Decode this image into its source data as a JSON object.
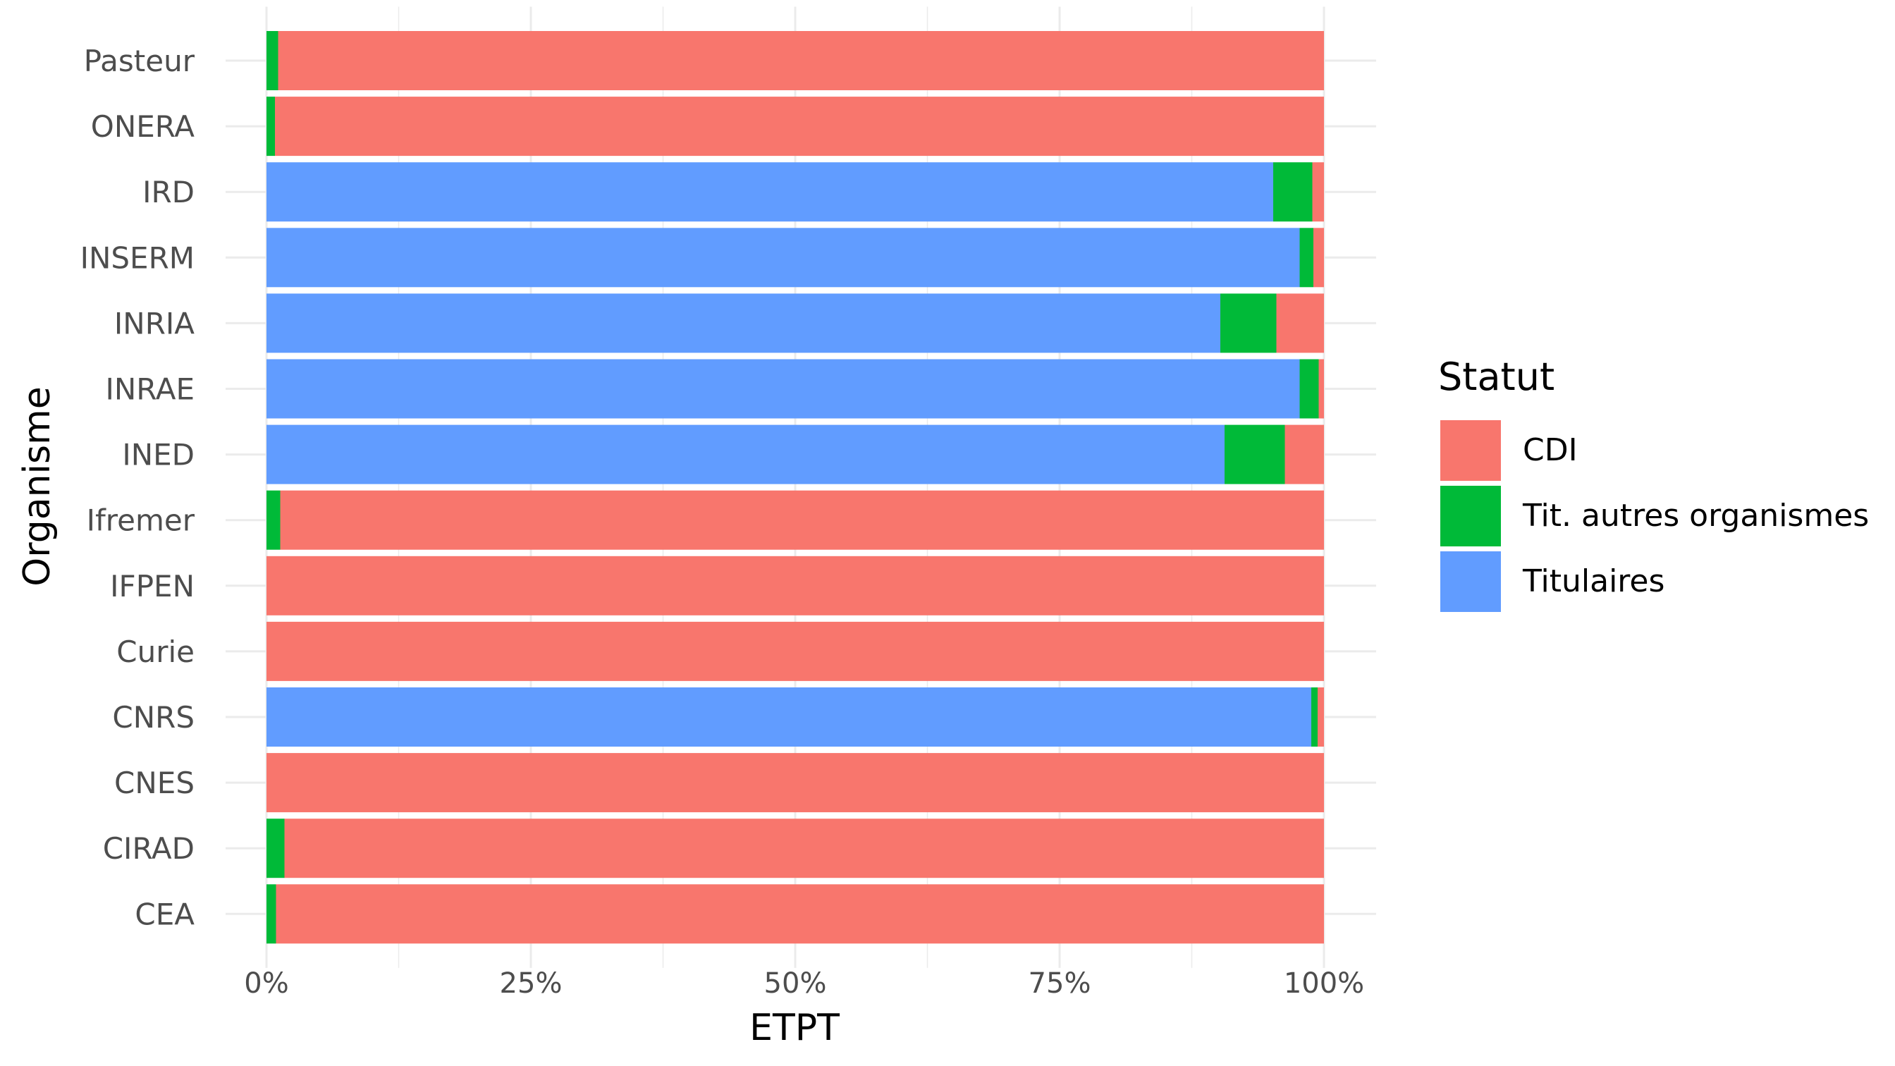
{
  "chart_data": {
    "type": "bar",
    "orientation": "horizontal",
    "stacked": "percent",
    "xlabel": "ETPT",
    "ylabel": "Organisme",
    "xlim": [
      0,
      1
    ],
    "x_ticks": [
      "0%",
      "25%",
      "50%",
      "75%",
      "100%"
    ],
    "grid": true,
    "legend_position": "right",
    "legend_title": "Statut",
    "categories": [
      "Pasteur",
      "ONERA",
      "IRD",
      "INSERM",
      "INRIA",
      "INRAE",
      "INED",
      "Ifremer",
      "IFPEN",
      "Curie",
      "CNRS",
      "CNES",
      "CIRAD",
      "CEA"
    ],
    "series": [
      {
        "name": "Titulaires",
        "color": "#619CFF",
        "values": [
          0,
          0,
          0.952,
          0.977,
          0.902,
          0.977,
          0.906,
          0,
          0,
          0,
          0.988,
          0,
          0,
          0
        ]
      },
      {
        "name": "Tit. autres organismes",
        "color": "#00BA38",
        "values": [
          0.011,
          0.008,
          0.037,
          0.013,
          0.053,
          0.018,
          0.057,
          0.013,
          0,
          0,
          0.006,
          0,
          0.017,
          0.009
        ]
      },
      {
        "name": "CDI",
        "color": "#F8766D",
        "values": [
          0.989,
          0.992,
          0.011,
          0.01,
          0.045,
          0.005,
          0.037,
          0.987,
          1.0,
          1.0,
          0.006,
          1.0,
          0.983,
          0.991
        ]
      }
    ],
    "legend_order": [
      "CDI",
      "Tit. autres organismes",
      "Titulaires"
    ]
  }
}
